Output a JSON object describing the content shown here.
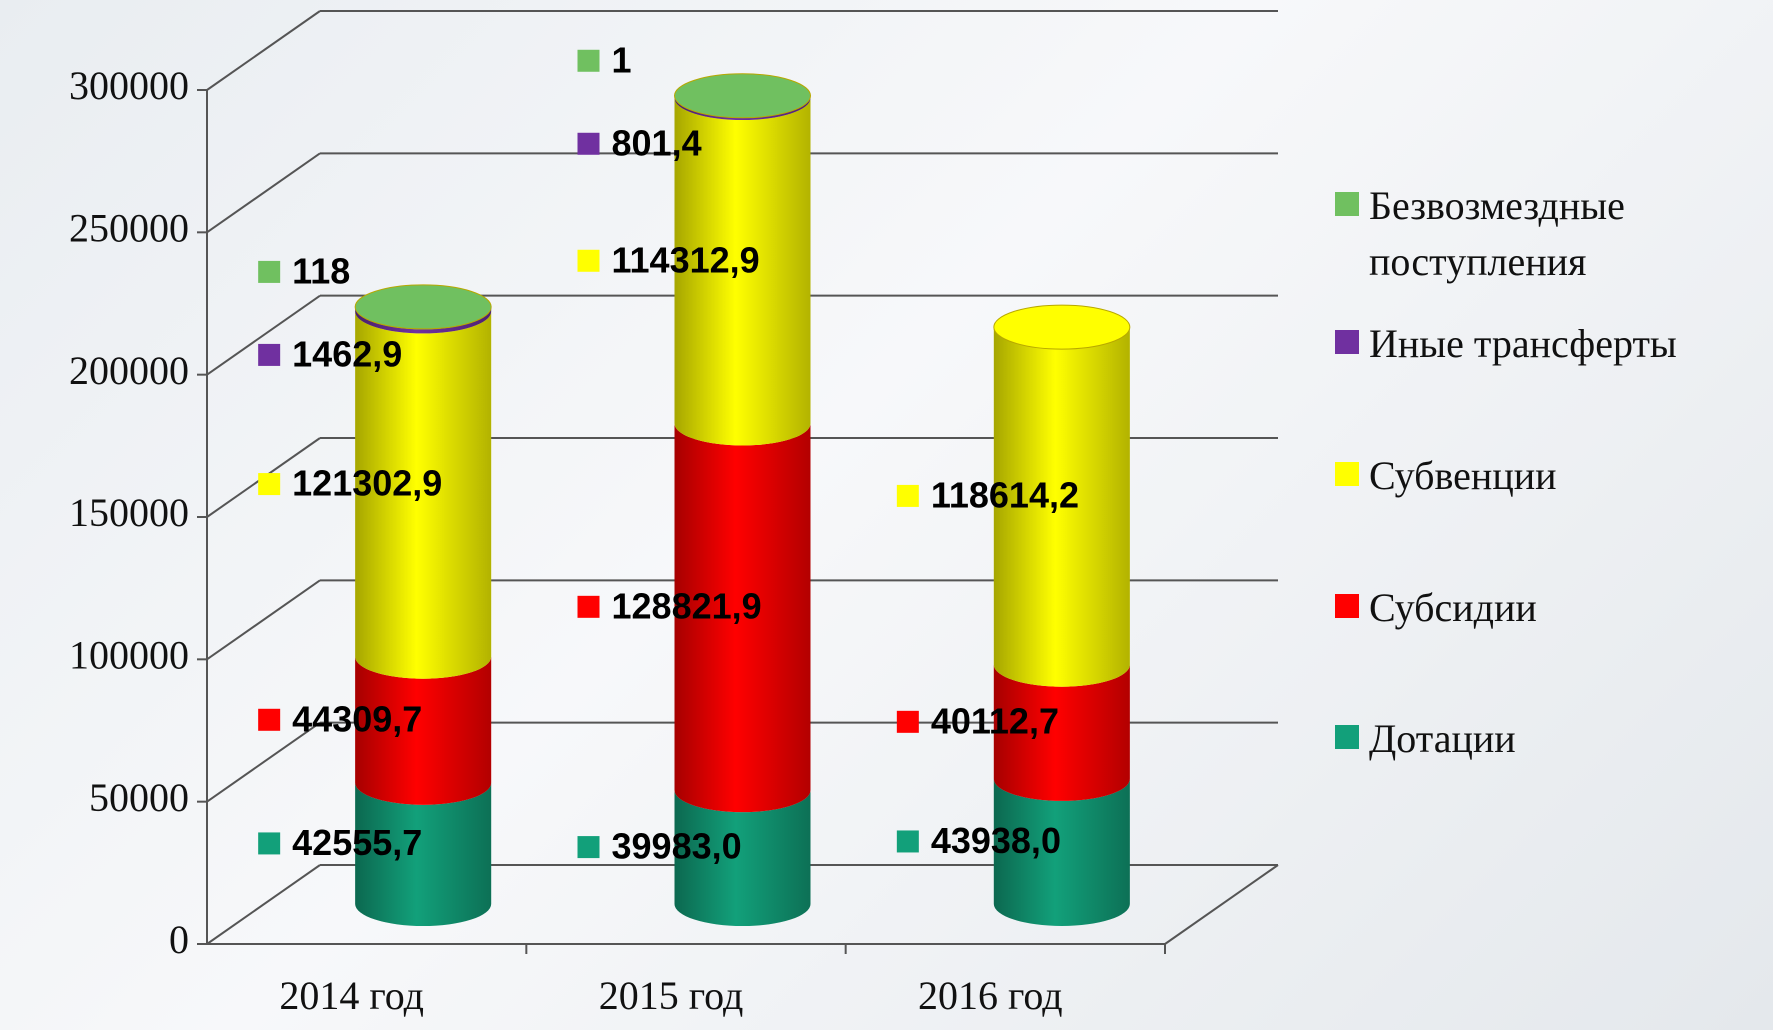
{
  "chart_data": {
    "type": "bar3d_stacked",
    "categories": [
      "2014 год",
      "2015 год",
      "2016 год"
    ],
    "series": [
      {
        "name": "Дотации",
        "color": "#12a07a",
        "values": [
          42555.7,
          39983.0,
          43938.0
        ],
        "value_labels": [
          "42555,7",
          "39983,0",
          "43938,0"
        ]
      },
      {
        "name": "Субсидии",
        "color": "#ff0000",
        "values": [
          44309.7,
          128821.9,
          40112.7
        ],
        "value_labels": [
          "44309,7",
          "128821,9",
          "40112,7"
        ]
      },
      {
        "name": "Субвенции",
        "color": "#ffff00",
        "values": [
          121302.9,
          114312.9,
          118614.2
        ],
        "value_labels": [
          "121302,9",
          "114312,9",
          "118614,2"
        ]
      },
      {
        "name": "Иные трансферты",
        "color": "#7030a0",
        "values": [
          1462.9,
          801.4,
          null
        ],
        "value_labels": [
          "1462,9",
          "801,4",
          null
        ]
      },
      {
        "name": "Безвозмездные поступления",
        "color": "#70c060",
        "values": [
          118,
          1,
          null
        ],
        "value_labels": [
          "118",
          "1",
          null
        ]
      }
    ],
    "ylim": [
      0,
      300000
    ],
    "yticks": [
      0,
      50000,
      100000,
      150000,
      200000,
      250000,
      300000
    ],
    "grid": true
  }
}
